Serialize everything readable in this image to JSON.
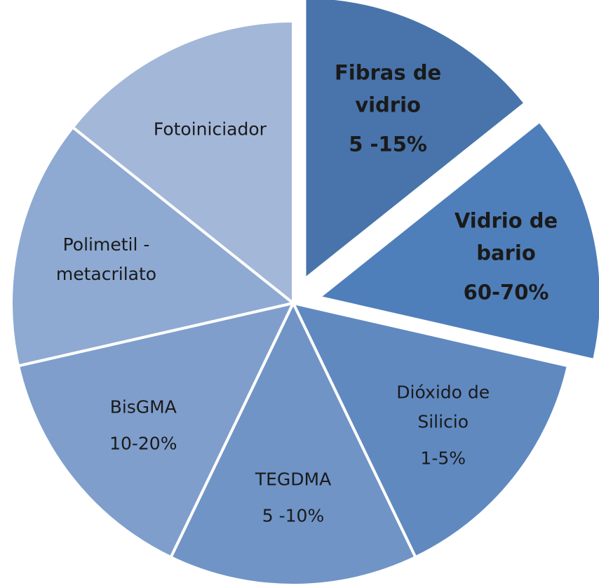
{
  "chart_data": {
    "type": "pie",
    "categories": [
      [
        "Fibras de",
        "vidrio"
      ],
      [
        "Vidrio de",
        "bario"
      ],
      [
        "Dióxido de",
        "Silicio"
      ],
      [
        "TEGDMA"
      ],
      [
        "BisGMA"
      ],
      [
        "Polimetil -",
        "metacrilato"
      ],
      [
        "Fotoiniciador"
      ]
    ],
    "details": [
      "5 -15%",
      "60-70%",
      "1-5%",
      "5 -10%",
      "10-20%",
      null,
      null
    ],
    "values": [
      14.3,
      14.3,
      14.3,
      14.3,
      14.3,
      14.3,
      14.3
    ],
    "colors": [
      "#4874ab",
      "#4f7fba",
      "#6089c0",
      "#7094c6",
      "#7f9ecc",
      "#8eaad2",
      "#a3b7d8"
    ],
    "explode": [
      true,
      true,
      false,
      false,
      false,
      false,
      false
    ]
  }
}
